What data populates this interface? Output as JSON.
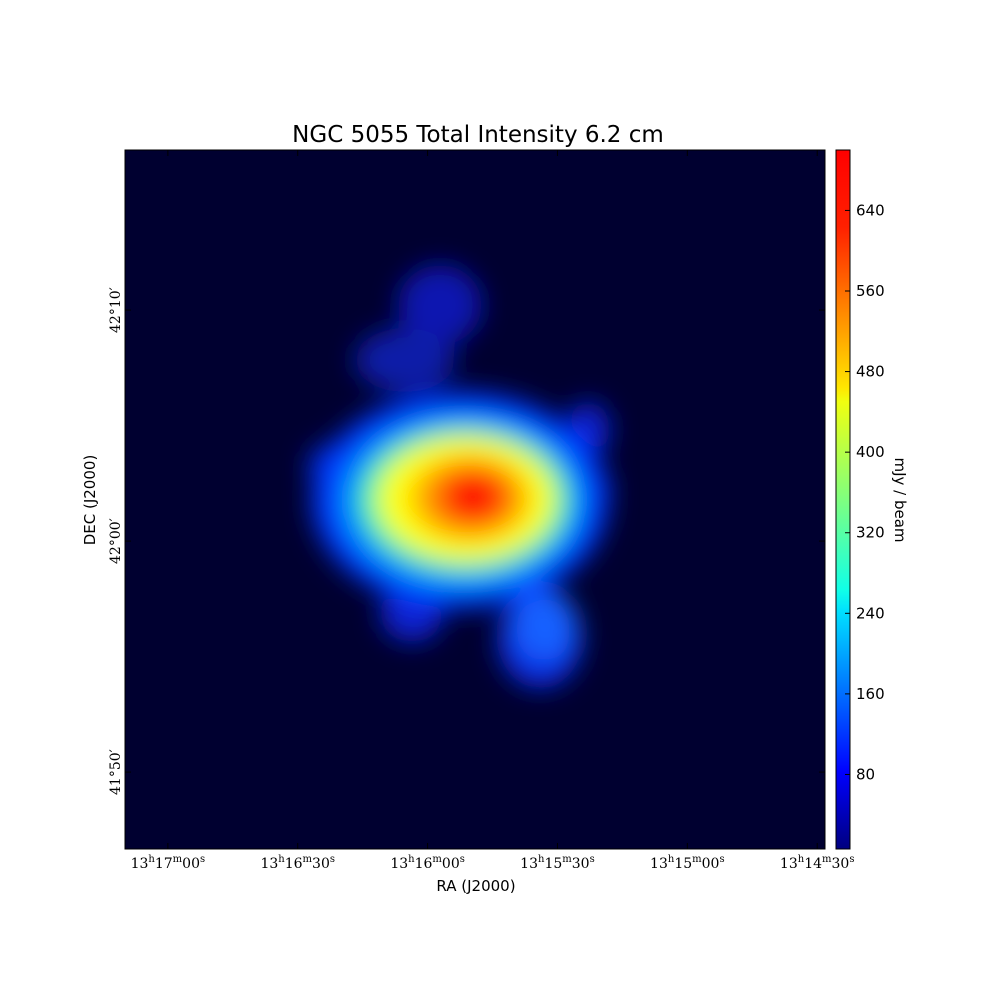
{
  "chart_data": {
    "type": "image",
    "title": "NGC 5055 Total Intensity 6.2 cm",
    "xlabel": "RA (J2000)",
    "ylabel": "DEC (J2000)",
    "colorbar_label": "mJy / beam",
    "xlim": [
      47829.9,
      47668.2
    ],
    "xticks": [
      {
        "value": 47820,
        "label": "13h17m00s"
      },
      {
        "value": 47790,
        "label": "13h16m30s"
      },
      {
        "value": 47760,
        "label": "13h16m00s"
      },
      {
        "value": 47730,
        "label": "13h15m30s"
      },
      {
        "value": 47700,
        "label": "13h15m00s"
      },
      {
        "value": 47670,
        "label": "13h14m30s"
      }
    ],
    "ylim": [
      2506.67,
      2536.93
    ],
    "yticks": [
      {
        "value": 2530,
        "label": "42°10′"
      },
      {
        "value": 2520,
        "label": "42°00′"
      },
      {
        "value": 2510,
        "label": "41°50′"
      }
    ],
    "clim": [
      6,
      700
    ],
    "cticks": [
      80,
      160,
      240,
      320,
      400,
      480,
      560,
      640
    ]
  }
}
